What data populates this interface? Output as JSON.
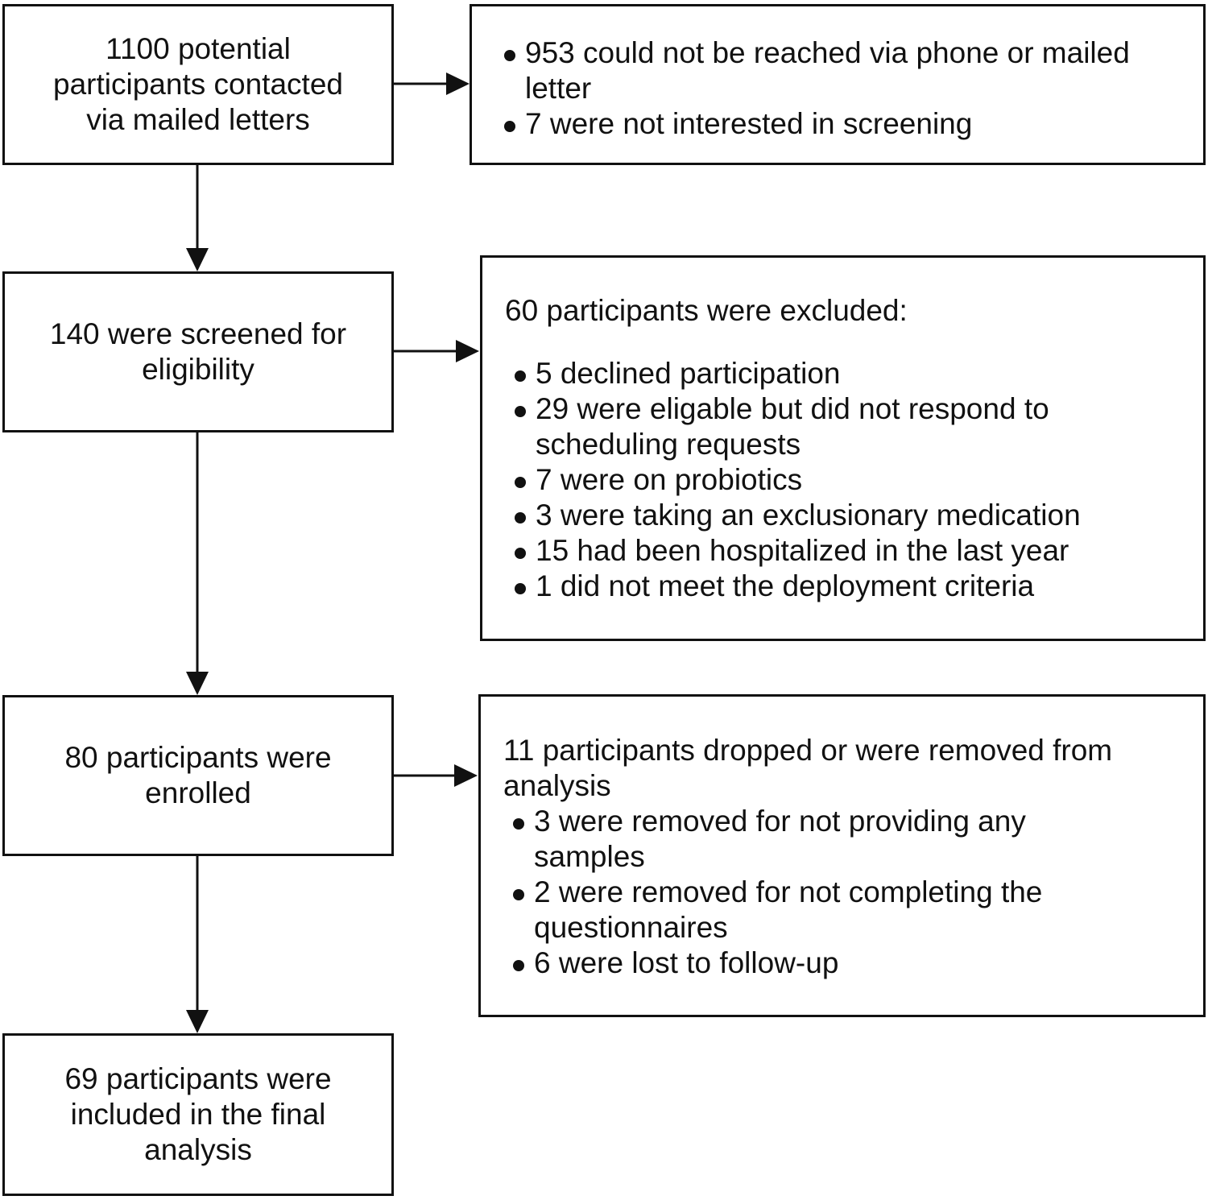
{
  "flow": {
    "contacted": "1100 potential\nparticipants contacted\nvia mailed letters",
    "screened": "140 were screened for\neligibility",
    "enrolled": "80 participants were\nenrolled",
    "final": "69 participants were\nincluded in the final\nanalysis"
  },
  "not_reached": {
    "items": [
      "953 could not be reached via phone or mailed letter",
      "7 were not interested in screening"
    ]
  },
  "excluded": {
    "heading": "60 participants were excluded:",
    "items": [
      "5 declined participation",
      "29 were eligable but did not respond to scheduling requests",
      "7 were on probiotics",
      "3 were taking an exclusionary medication",
      "15 had been hospitalized in the last year",
      "1 did not meet the deployment criteria"
    ]
  },
  "dropped": {
    "heading": "11 participants dropped or were removed from\nanalysis",
    "items": [
      "3 were removed for not providing any samples",
      " 2 were removed for not completing the questionnaires",
      "6 were lost to follow-up"
    ]
  }
}
